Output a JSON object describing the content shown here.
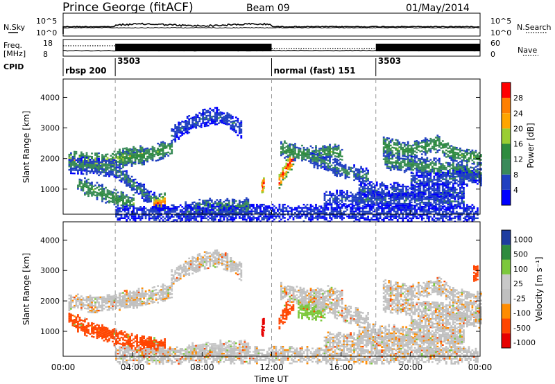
{
  "header": {
    "station": "Prince George (fitACF)",
    "beam": "Beam 09",
    "date": "01/May/2014"
  },
  "side_labels": {
    "nsky": "N.Sky",
    "nsearch": "N.Search",
    "freq": "Freq.",
    "freq_unit": "[MHz]",
    "nave": "Nave",
    "cpid": "CPID"
  },
  "noise_axis": {
    "left_top": "10^5",
    "left_bottom": "10^0",
    "right_top": "10^5",
    "right_bottom": "10^0"
  },
  "freq_axis": {
    "left_top": "18",
    "left_bottom": "8",
    "right_top": "60",
    "right_bottom": "0"
  },
  "cpid_segments": [
    {
      "label": "rbsp 200",
      "start": 0,
      "end": 3
    },
    {
      "label": "3503",
      "start": 3,
      "end": 12
    },
    {
      "label": "normal (fast) 151",
      "start": 12,
      "end": 18
    },
    {
      "label": "3503",
      "start": 18,
      "end": 24
    }
  ],
  "colors": {
    "power": [
      "#0000ff",
      "#2040c0",
      "#3a8a5a",
      "#2e8b3e",
      "#9acd32",
      "#ffa500",
      "#ff7f00",
      "#ff0000"
    ],
    "velocity": [
      "#e60000",
      "#ff4500",
      "#ff8c00",
      "#c0c0c0",
      "#c8c8c8",
      "#7cc83c",
      "#2e8b3e",
      "#1e3ca0"
    ]
  },
  "chart_data": [
    {
      "type": "heatmap",
      "panel": "power",
      "ylabel": "Slant Range [km]",
      "xlim": [
        0,
        24
      ],
      "ylim": [
        180,
        4600
      ],
      "yticks": [
        "1000",
        "2000",
        "3000",
        "4000"
      ],
      "yticks_values": [
        1000,
        2000,
        3000,
        4000
      ],
      "colorbar_label": "Power [dB]",
      "colorbar_ticks": [
        "28",
        "24",
        "20",
        "16",
        "12",
        "8",
        "4"
      ],
      "colorbar_ticks_values": [
        28,
        24,
        20,
        16,
        12,
        8,
        4
      ],
      "clim": [
        0,
        32
      ],
      "series": [
        {
          "x": [
            0.3,
            1.0,
            1.6,
            2.2,
            2.8,
            3.2,
            3.8,
            4.5
          ],
          "y": [
            1990,
            1960,
            1920,
            1930,
            1960,
            2050,
            2120,
            2170
          ],
          "value": 16
        },
        {
          "x": [
            3.2,
            4.0,
            4.6,
            5.1,
            5.7,
            6.2
          ],
          "y": [
            2000,
            2060,
            2110,
            2190,
            2300,
            2360
          ],
          "value": 12
        },
        {
          "x": [
            0.3,
            1.0,
            2.0,
            3.0
          ],
          "y": [
            1820,
            1800,
            1750,
            1700
          ],
          "value": 8
        },
        {
          "x": [
            6.2,
            7.0,
            8.0,
            8.8,
            9.4,
            10.2
          ],
          "y": [
            2770,
            3100,
            3350,
            3420,
            3300,
            2980
          ],
          "value": 6
        },
        {
          "x": [
            3.0,
            3.6,
            4.2,
            4.8,
            5.2,
            5.5
          ],
          "y": [
            1620,
            1350,
            1080,
            820,
            640,
            580
          ],
          "value": 8
        },
        {
          "x": [
            5.2,
            5.5,
            5.8
          ],
          "y": [
            540,
            580,
            620
          ],
          "value": 22
        },
        {
          "x": [
            0.8,
            1.5,
            2.2,
            2.8,
            3.4,
            4.0
          ],
          "y": [
            1200,
            1050,
            900,
            760,
            640,
            560
          ],
          "value": 12
        },
        {
          "x": [
            11.4,
            11.5
          ],
          "y": [
            1080,
            1220
          ],
          "value": 28
        },
        {
          "x": [
            12.4,
            12.6,
            12.8,
            13.0,
            13.2
          ],
          "y": [
            1280,
            1500,
            1700,
            1880,
            2000
          ],
          "value": 26
        },
        {
          "x": [
            12.5,
            13.2,
            13.9,
            14.6,
            15.3,
            16.0
          ],
          "y": [
            2350,
            2250,
            2150,
            2170,
            2260,
            2150
          ],
          "value": 12
        },
        {
          "x": [
            14.2,
            15.0,
            15.6,
            16.2,
            17.0,
            17.5
          ],
          "y": [
            2050,
            1900,
            1750,
            1600,
            1500,
            1420
          ],
          "value": 8
        },
        {
          "x": [
            18.4,
            19.2,
            20.0,
            20.8,
            21.6,
            22.4,
            23.2,
            24.0
          ],
          "y": [
            2450,
            2350,
            2280,
            2420,
            2520,
            2180,
            2100,
            2040
          ],
          "value": 12
        },
        {
          "x": [
            18.4,
            19.2,
            20.0,
            20.8,
            21.6,
            22.4,
            23.2,
            24.0
          ],
          "y": [
            1950,
            1880,
            1820,
            1780,
            1750,
            1700,
            1600,
            1500
          ],
          "value": 10
        },
        {
          "x": [
            20.0,
            21.0,
            22.0,
            23.0,
            24.0
          ],
          "y": [
            1300,
            1320,
            1350,
            1400,
            1420
          ],
          "value": 6
        },
        {
          "x": [
            17.0,
            19.0,
            21.0,
            23.0
          ],
          "y": [
            1000,
            960,
            930,
            900
          ],
          "value": 6
        },
        {
          "x": [
            15.0,
            17.0,
            19.0,
            21.0,
            23.0
          ],
          "y": [
            720,
            690,
            660,
            640,
            620
          ],
          "value": 6
        },
        {
          "x": [
            7.0,
            8.0,
            9.0,
            9.8,
            10.6
          ],
          "y": [
            330,
            430,
            460,
            410,
            470
          ],
          "value": 10
        },
        {
          "x": [
            3.0,
            6.0,
            9.0,
            12.0,
            15.0,
            18.0,
            21.0,
            23.8
          ],
          "y": [
            240,
            230,
            240,
            250,
            245,
            240,
            235,
            240
          ],
          "value": 5
        }
      ]
    },
    {
      "type": "heatmap",
      "panel": "velocity",
      "ylabel": "Slant Range [km]",
      "xlabel": "Time UT",
      "xlim": [
        0,
        24
      ],
      "ylim": [
        180,
        4600
      ],
      "xticks": [
        "00:00",
        "04:00",
        "08:00",
        "12:00",
        "16:00",
        "20:00",
        "00:00"
      ],
      "xticks_values": [
        0,
        4,
        8,
        12,
        16,
        20,
        24
      ],
      "yticks": [
        "1000",
        "2000",
        "3000",
        "4000"
      ],
      "yticks_values": [
        1000,
        2000,
        3000,
        4000
      ],
      "colorbar_label": "Velocity [m s⁻¹]",
      "colorbar_ticks": [
        "1000",
        "500",
        "100",
        "25",
        "-25",
        "-100",
        "-500",
        "-1000"
      ],
      "clim": [
        -1200,
        1200
      ],
      "series": [
        {
          "x": [
            0.3,
            1.0,
            1.6,
            2.2,
            2.8,
            3.2,
            3.8,
            4.5
          ],
          "y": [
            1990,
            1960,
            1920,
            1930,
            1960,
            2050,
            2120,
            2170
          ],
          "value": 0
        },
        {
          "x": [
            3.2,
            4.0,
            4.6,
            5.1,
            5.7,
            6.2
          ],
          "y": [
            2000,
            2060,
            2110,
            2190,
            2300,
            2360
          ],
          "value": 0
        },
        {
          "x": [
            6.2,
            7.0,
            8.0,
            8.8,
            9.4,
            10.2
          ],
          "y": [
            2770,
            3100,
            3350,
            3420,
            3300,
            2980
          ],
          "value": 0
        },
        {
          "x": [
            0.3,
            1.0,
            1.6,
            2.3,
            3.0,
            3.7,
            4.4,
            5.2,
            5.8
          ],
          "y": [
            1450,
            1230,
            1080,
            940,
            820,
            700,
            600,
            540,
            500
          ],
          "value": -300
        },
        {
          "x": [
            4.5,
            5.2,
            5.8
          ],
          "y": [
            560,
            520,
            480
          ],
          "value": -400
        },
        {
          "x": [
            11.4,
            11.5
          ],
          "y": [
            1080,
            1220
          ],
          "value": -600
        },
        {
          "x": [
            12.4,
            12.6,
            12.8,
            13.0,
            13.2
          ],
          "y": [
            1280,
            1500,
            1700,
            1880,
            2000
          ],
          "value": -300
        },
        {
          "x": [
            13.5,
            14.0,
            14.5,
            15.0
          ],
          "y": [
            1750,
            1700,
            1680,
            1640
          ],
          "value": 150
        },
        {
          "x": [
            12.5,
            13.2,
            13.9,
            14.6,
            15.3,
            16.0
          ],
          "y": [
            2350,
            2250,
            2150,
            2170,
            2260,
            2150
          ],
          "value": 0
        },
        {
          "x": [
            14.2,
            15.0,
            15.6,
            16.2,
            17.0,
            17.5
          ],
          "y": [
            2050,
            1900,
            1750,
            1600,
            1500,
            1420
          ],
          "value": 0
        },
        {
          "x": [
            18.4,
            19.2,
            20.0,
            20.8,
            21.6,
            22.4,
            23.2,
            24.0
          ],
          "y": [
            2450,
            2350,
            2280,
            2420,
            2520,
            2180,
            2100,
            2040
          ],
          "value": 0
        },
        {
          "x": [
            18.4,
            19.2,
            20.0,
            20.8,
            21.6,
            22.4,
            23.2,
            24.0
          ],
          "y": [
            1950,
            1880,
            1820,
            1780,
            1750,
            1700,
            1600,
            1500
          ],
          "value": 0
        },
        {
          "x": [
            20.0,
            21.0,
            22.0,
            23.0,
            24.0
          ],
          "y": [
            1300,
            1320,
            1350,
            1400,
            1420
          ],
          "value": 0
        },
        {
          "x": [
            17.0,
            19.0,
            21.0,
            23.0
          ],
          "y": [
            1000,
            960,
            930,
            900
          ],
          "value": 0
        },
        {
          "x": [
            15.0,
            17.0,
            19.0,
            21.0,
            23.0
          ],
          "y": [
            720,
            690,
            660,
            640,
            620
          ],
          "value": 0
        },
        {
          "x": [
            7.0,
            8.0,
            9.0,
            9.8,
            10.6
          ],
          "y": [
            330,
            430,
            460,
            410,
            470
          ],
          "value": 60
        },
        {
          "x": [
            3.0,
            6.0,
            9.0,
            12.0,
            15.0,
            18.0,
            21.0,
            23.8
          ],
          "y": [
            240,
            230,
            240,
            250,
            245,
            240,
            235,
            240
          ],
          "value": 0
        },
        {
          "x": [
            23.6,
            23.8
          ],
          "y": [
            2900,
            2950
          ],
          "value": -400
        }
      ]
    }
  ]
}
